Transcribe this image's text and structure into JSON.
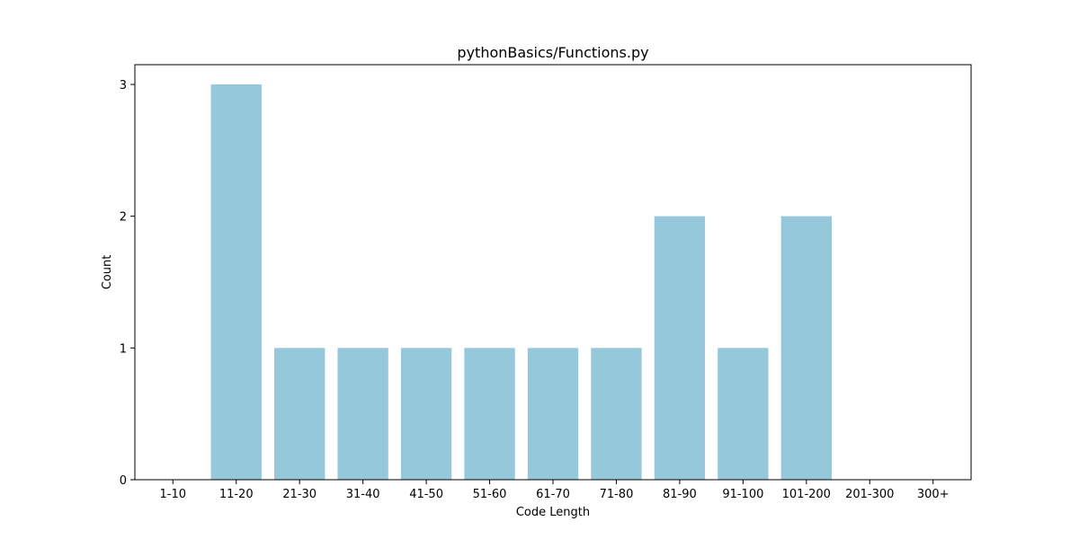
{
  "chart_data": {
    "type": "bar",
    "title": "pythonBasics/Functions.py",
    "xlabel": "Code Length",
    "ylabel": "Count",
    "categories": [
      "1-10",
      "11-20",
      "21-30",
      "31-40",
      "41-50",
      "51-60",
      "61-70",
      "71-80",
      "81-90",
      "91-100",
      "101-200",
      "201-300",
      "300+"
    ],
    "values": [
      0,
      3,
      1,
      1,
      1,
      1,
      1,
      1,
      2,
      1,
      2,
      0,
      0
    ],
    "ylim": [
      0,
      3.15
    ],
    "yticks": [
      0,
      1,
      2,
      3
    ],
    "grid": false,
    "bar_color": "#96c8dc"
  }
}
